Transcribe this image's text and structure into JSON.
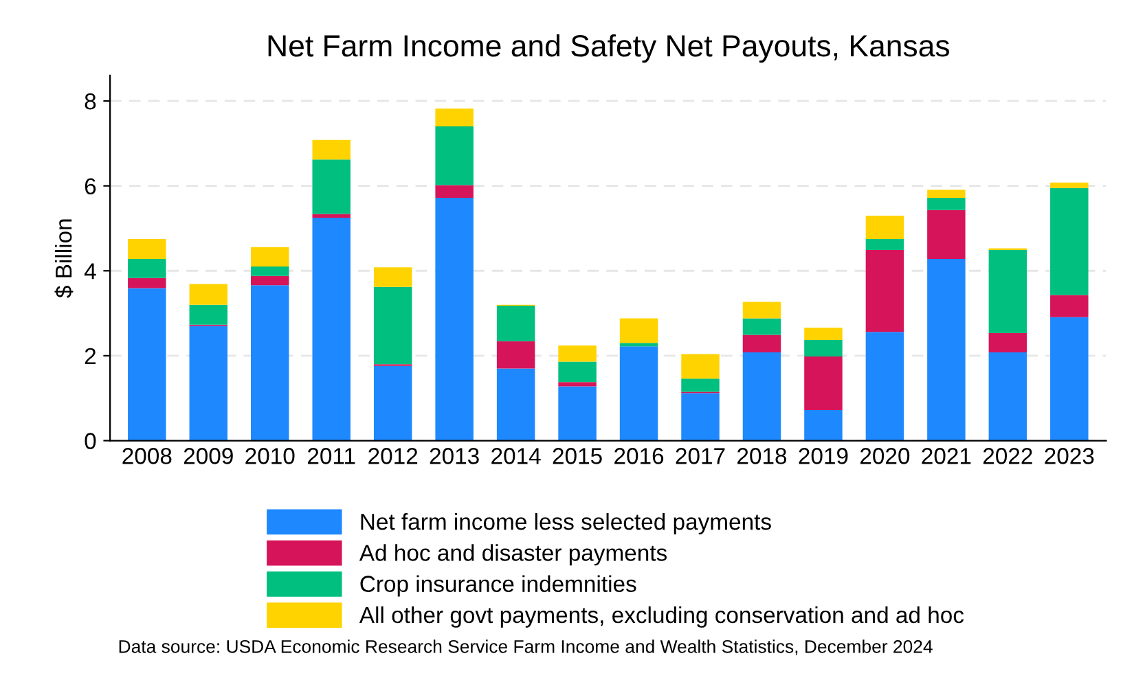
{
  "chart_data": {
    "type": "bar",
    "stacked": true,
    "title": "Net Farm Income and Safety Net Payouts, Kansas",
    "ylabel": "$ Billion",
    "categories": [
      "2008",
      "2009",
      "2010",
      "2011",
      "2012",
      "2013",
      "2014",
      "2015",
      "2016",
      "2017",
      "2018",
      "2019",
      "2020",
      "2021",
      "2022",
      "2023"
    ],
    "series": [
      {
        "name": "Net farm income less selected payments",
        "color": "#1e88ff",
        "values": [
          3.59,
          2.7,
          3.66,
          5.25,
          1.76,
          5.72,
          1.7,
          1.28,
          2.22,
          1.12,
          2.08,
          0.72,
          2.56,
          4.28,
          2.08,
          2.91
        ]
      },
      {
        "name": "Ad hoc and disaster payments",
        "color": "#d6145a",
        "values": [
          0.24,
          0.03,
          0.22,
          0.09,
          0.04,
          0.3,
          0.64,
          0.1,
          0,
          0.03,
          0.41,
          1.26,
          1.93,
          1.15,
          0.45,
          0.52
        ]
      },
      {
        "name": "Crop insurance indemnities",
        "color": "#00bf7f",
        "values": [
          0.45,
          0.47,
          0.22,
          1.28,
          1.82,
          1.38,
          0.84,
          0.48,
          0.08,
          0.31,
          0.39,
          0.39,
          0.26,
          0.29,
          1.96,
          2.52
        ]
      },
      {
        "name": "All other govt payments, excluding conservation and ad hoc",
        "color": "#ffd300",
        "values": [
          0.47,
          0.49,
          0.46,
          0.46,
          0.46,
          0.42,
          0.02,
          0.38,
          0.58,
          0.58,
          0.39,
          0.29,
          0.55,
          0.19,
          0.04,
          0.13
        ]
      }
    ],
    "ylim": [
      0,
      8.6
    ],
    "yticks": [
      0,
      2,
      4,
      6,
      8
    ],
    "grid": "y",
    "legend": "bottom",
    "annotations": [
      "Data source: USDA Economic Research Service Farm Income and Wealth Statistics, December 2024"
    ]
  }
}
